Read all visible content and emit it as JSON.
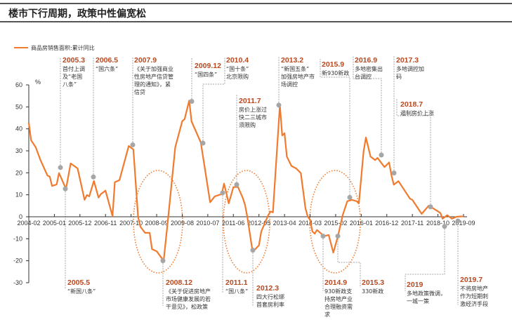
{
  "title": "楼市下行周期，政策中性偏宽松",
  "chart_data": {
    "type": "line",
    "title": "",
    "xlabel": "",
    "ylabel": "%",
    "ylim": [
      -30,
      60
    ],
    "yticks": [
      60,
      50,
      40,
      30,
      20,
      10,
      0,
      -10,
      -20,
      -30
    ],
    "xticks": [
      "2004-02",
      "2005-01",
      "2005-12",
      "2006-11",
      "2007-10",
      "2008-09",
      "2009-08",
      "2010-07",
      "2011-06",
      "2012-05",
      "2013-04",
      "2014-03",
      "2015-02",
      "2016-01",
      "2016-12",
      "2017-11",
      "2018-10",
      "2019-09"
    ],
    "legend": "top-left",
    "grid": false,
    "colors": {
      "line": "#f07b2e",
      "marker": "#a6a6a6",
      "ellipse": "#f07b2e",
      "annotation_date": "#b9481f",
      "leader": "#a6a6a6"
    },
    "series": [
      {
        "name": "商品房销售面积:累计同比",
        "points": [
          [
            "2004-02",
            42.8
          ],
          [
            "2004-03",
            34.8
          ],
          [
            "2004-05",
            31.6
          ],
          [
            "2004-07",
            25.9
          ],
          [
            "2004-10",
            18.8
          ],
          [
            "2004-11",
            18.3
          ],
          [
            "2004-12",
            14.0
          ],
          [
            "2005-02",
            14.7
          ],
          [
            "2005-03",
            19.9
          ],
          [
            "2005-06",
            12.7
          ],
          [
            "2005-08",
            24.3
          ],
          [
            "2005-11",
            22.0
          ],
          [
            "2006-02",
            7.7
          ],
          [
            "2006-03",
            9.9
          ],
          [
            "2006-04",
            9.3
          ],
          [
            "2006-06",
            16.3
          ],
          [
            "2006-08",
            8.7
          ],
          [
            "2006-09",
            10.3
          ],
          [
            "2006-11",
            11.9
          ],
          [
            "2007-02",
            0.3
          ],
          [
            "2007-03",
            15.7
          ],
          [
            "2007-05",
            16.7
          ],
          [
            "2007-09",
            32.2
          ],
          [
            "2007-11",
            30.6
          ],
          [
            "2008-01",
            0.0
          ],
          [
            "2008-02",
            -4.5
          ],
          [
            "2008-04",
            -7.3
          ],
          [
            "2008-06",
            -7.3
          ],
          [
            "2008-07",
            -14.7
          ],
          [
            "2008-09",
            -15.7
          ],
          [
            "2008-12",
            -20.0
          ],
          [
            "2009-02",
            0.0
          ],
          [
            "2009-05",
            31.6
          ],
          [
            "2009-08",
            43.5
          ],
          [
            "2009-09",
            44.4
          ],
          [
            "2009-11",
            52.9
          ],
          [
            "2009-12",
            43.4
          ],
          [
            "2010-04",
            33.8
          ],
          [
            "2010-08",
            6.6
          ],
          [
            "2010-10",
            9.3
          ],
          [
            "2011-01",
            10.3
          ],
          [
            "2011-02",
            15.1
          ],
          [
            "2011-04",
            6.1
          ],
          [
            "2011-06",
            13.5
          ],
          [
            "2011-08",
            13.5
          ],
          [
            "2011-10",
            8.7
          ],
          [
            "2011-11",
            5.5
          ],
          [
            "2011-12",
            0.0
          ],
          [
            "2012-02",
            -14.0
          ],
          [
            "2012-03",
            -15.2
          ],
          [
            "2012-05",
            -13.0
          ],
          [
            "2012-06",
            -6.7
          ],
          [
            "2012-09",
            0.7
          ],
          [
            "2012-10",
            2.4
          ],
          [
            "2012-11",
            2.0
          ],
          [
            "2013-02",
            50.8
          ],
          [
            "2013-03",
            37.0
          ],
          [
            "2013-04",
            38.0
          ],
          [
            "2013-05",
            27.4
          ],
          [
            "2013-07",
            23.1
          ],
          [
            "2013-09",
            22.0
          ],
          [
            "2013-11",
            19.9
          ],
          [
            "2014-01",
            3.9
          ],
          [
            "2014-02",
            0.0
          ],
          [
            "2014-03",
            -1.3
          ],
          [
            "2014-04",
            -6.7
          ],
          [
            "2014-05",
            -7.7
          ],
          [
            "2014-06",
            -6.0
          ],
          [
            "2014-09",
            -8.8
          ],
          [
            "2014-11",
            -8.3
          ],
          [
            "2015-01",
            -16.3
          ],
          [
            "2015-03",
            -8.8
          ],
          [
            "2015-05",
            0.7
          ],
          [
            "2015-07",
            7.1
          ],
          [
            "2015-09",
            7.7
          ],
          [
            "2015-11",
            7.1
          ],
          [
            "2015-12",
            6.1
          ],
          [
            "2016-02",
            29.5
          ],
          [
            "2016-03",
            36.1
          ],
          [
            "2016-05",
            27.4
          ],
          [
            "2016-07",
            25.8
          ],
          [
            "2016-08",
            26.8
          ],
          [
            "2016-11",
            22.6
          ],
          [
            "2017-01",
            24.7
          ],
          [
            "2017-02",
            18.8
          ],
          [
            "2017-03",
            14.6
          ],
          [
            "2017-05",
            16.2
          ],
          [
            "2017-10",
            8.2
          ],
          [
            "2017-11",
            7.7
          ],
          [
            "2018-03",
            1.3
          ],
          [
            "2018-06",
            5.0
          ],
          [
            "2018-07",
            4.5
          ],
          [
            "2018-11",
            1.8
          ],
          [
            "2018-12",
            -0.9
          ],
          [
            "2019-02",
            0.7
          ],
          [
            "2019-04",
            -0.9
          ],
          [
            "2019-06",
            0.0
          ],
          [
            "2019-09",
            0.2
          ]
        ]
      }
    ],
    "annotations": [
      {
        "label": "2005.3",
        "date": "2005-03",
        "value": 22.4,
        "text": [
          "首付上调",
          "及“老国",
          "八条”"
        ]
      },
      {
        "label": "2006.5",
        "date": "2006-05",
        "value": 18.1,
        "text": [
          "“国六条”"
        ]
      },
      {
        "label": "2007.9",
        "date": "2007-09",
        "value": 32.7,
        "text": [
          "《关于加强商业",
          "性房地产信贷管",
          "理的通知》，紧",
          "信贷"
        ]
      },
      {
        "label": "2009.12",
        "date": "2009-12",
        "value": 52.5,
        "text": [
          "“国四条”"
        ]
      },
      {
        "label": "2010.4",
        "date": "2010-04",
        "value": 33.5,
        "text": [
          "“国十条”",
          "北京限购"
        ]
      },
      {
        "label": "2011.7",
        "date": "2011-07",
        "value": 14.6,
        "text": [
          "房价上涨过",
          "快二三城市",
          "须限购"
        ]
      },
      {
        "label": "2013.2",
        "date": "2013-02",
        "value": 50.8,
        "text": [
          "“新国五条”",
          "加强房地产市",
          "场调控"
        ]
      },
      {
        "label": "2015.9",
        "date": "2015-09",
        "value": 8.8,
        "text": [
          "新930新政"
        ]
      },
      {
        "label": "2016.9",
        "date": "2016-09",
        "value": 28.1,
        "text": [
          "多地密集出",
          "台调控"
        ]
      },
      {
        "label": "2017.3",
        "date": "2017-03",
        "value": 19.9,
        "text": [
          "多地调控加",
          "码"
        ]
      },
      {
        "label": "2018.7",
        "date": "2018-07",
        "value": 4.5,
        "text": [
          "遏制房价上涨"
        ]
      },
      {
        "label": "2005.5",
        "date": "2005-05",
        "value": 12.7,
        "text": [
          "“新国八条”"
        ]
      },
      {
        "label": "2008.12",
        "date": "2008-12",
        "value": -20.0,
        "text": [
          "《关于促进房地产",
          "市场健康发展的若",
          "干意见》，松政策"
        ]
      },
      {
        "label": "2011.1",
        "date": "2011-01",
        "value": 10.9,
        "text": [
          "“国八条”"
        ]
      },
      {
        "label": "2012.3",
        "date": "2012-03",
        "value": -15.2,
        "text": [
          "四大行松绑",
          "首套房利率"
        ]
      },
      {
        "label": "2014.9",
        "date": "2014-09",
        "value": -8.8,
        "text": [
          "930新政支",
          "持房地产业",
          "合理融资需",
          "求"
        ]
      },
      {
        "label": "2015.3",
        "date": "2015-03",
        "value": -8.8,
        "text": [
          "330新政"
        ]
      },
      {
        "label": "2019",
        "date": "2019-01",
        "value": -4.4,
        "text": [
          "多地政策微调，",
          "一城一策"
        ]
      },
      {
        "label": "2019.7",
        "date": "2019-08",
        "value": -1.9,
        "text": [
          "不将房地产",
          "作为短期刺",
          "激经济手段"
        ]
      }
    ]
  }
}
